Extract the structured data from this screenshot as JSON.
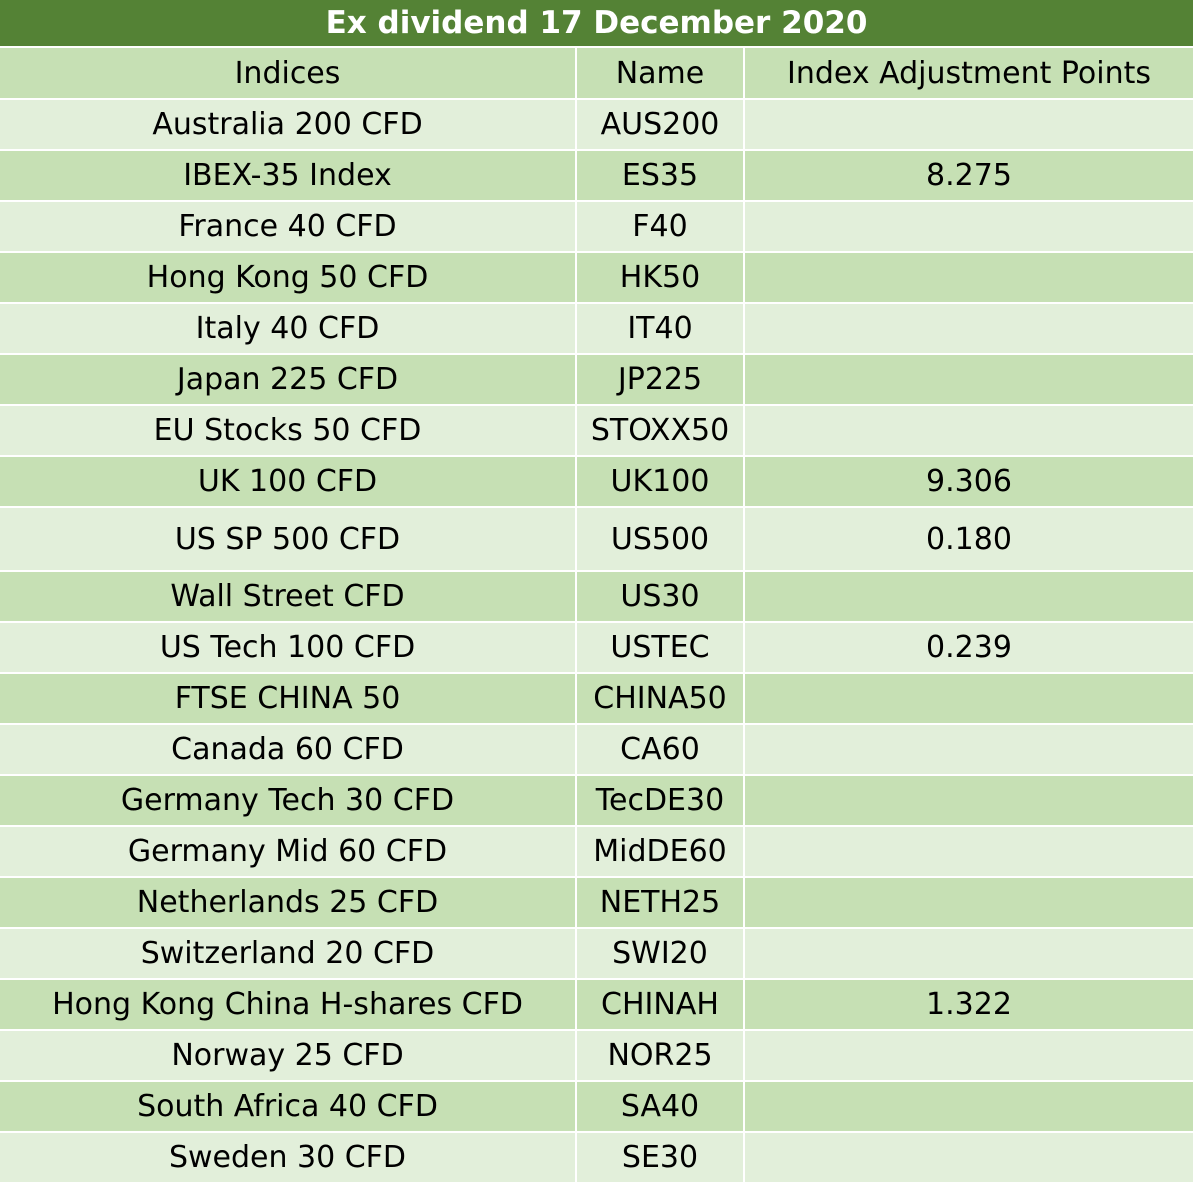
{
  "title": "Ex dividend 17 December 2020",
  "headers": {
    "indices": "Indices",
    "name": "Name",
    "points": "Index Adjustment Points"
  },
  "rows": [
    {
      "index": "Australia 200 CFD",
      "name": "AUS200",
      "points": ""
    },
    {
      "index": "IBEX-35 Index",
      "name": "ES35",
      "points": "8.275"
    },
    {
      "index": "France 40 CFD",
      "name": "F40",
      "points": ""
    },
    {
      "index": "Hong Kong 50 CFD",
      "name": "HK50",
      "points": ""
    },
    {
      "index": "Italy 40 CFD",
      "name": "IT40",
      "points": ""
    },
    {
      "index": "Japan 225 CFD",
      "name": "JP225",
      "points": ""
    },
    {
      "index": "EU Stocks 50 CFD",
      "name": "STOXX50",
      "points": ""
    },
    {
      "index": "UK 100 CFD",
      "name": "UK100",
      "points": "9.306"
    },
    {
      "index": "US SP 500 CFD",
      "name": "US500",
      "points": "0.180"
    },
    {
      "index": "Wall Street CFD",
      "name": "US30",
      "points": ""
    },
    {
      "index": "US Tech 100 CFD",
      "name": "USTEC",
      "points": "0.239"
    },
    {
      "index": "FTSE CHINA 50",
      "name": "CHINA50",
      "points": ""
    },
    {
      "index": "Canada 60 CFD",
      "name": "CA60",
      "points": ""
    },
    {
      "index": "Germany Tech 30 CFD",
      "name": "TecDE30",
      "points": ""
    },
    {
      "index": "Germany Mid 60 CFD",
      "name": "MidDE60",
      "points": ""
    },
    {
      "index": "Netherlands 25 CFD",
      "name": "NETH25",
      "points": ""
    },
    {
      "index": "Switzerland 20 CFD",
      "name": "SWI20",
      "points": ""
    },
    {
      "index": "Hong Kong China H-shares CFD",
      "name": "CHINAH",
      "points": "1.322"
    },
    {
      "index": "Norway 25 CFD",
      "name": "NOR25",
      "points": ""
    },
    {
      "index": "South Africa 40 CFD",
      "name": "SA40",
      "points": ""
    },
    {
      "index": "Sweden 30 CFD",
      "name": "SE30",
      "points": ""
    }
  ]
}
